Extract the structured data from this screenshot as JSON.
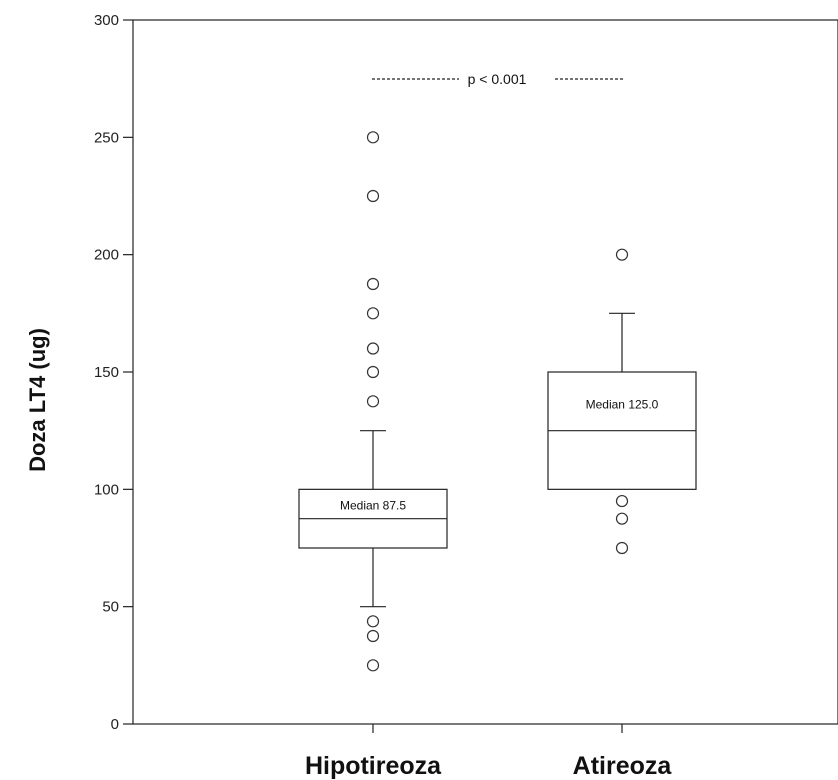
{
  "chart_data": {
    "type": "box",
    "ylabel": "Doza LT4 (ug)",
    "xlabel": "",
    "ylim": [
      0,
      300
    ],
    "yticks": [
      0,
      50,
      100,
      150,
      200,
      250,
      300
    ],
    "categories": [
      "Hipotireoza",
      "Atireoza"
    ],
    "boxes": [
      {
        "category": "Hipotireoza",
        "whisker_low": 50,
        "q1": 75,
        "median": 87.5,
        "q3": 100,
        "whisker_high": 125,
        "median_label": "Median 87.5",
        "outliers": [
          250,
          225,
          187.5,
          175,
          160,
          150,
          137.5,
          43.75,
          37.5,
          25
        ]
      },
      {
        "category": "Atireoza",
        "whisker_low": 100,
        "q1": 100,
        "median": 125,
        "q3": 150,
        "whisker_high": 175,
        "median_label": "Median 125.0",
        "outliers": [
          200,
          95,
          87.5,
          75
        ]
      }
    ],
    "annotation": "p < 0.001",
    "grid": false,
    "colors": {
      "line": "#222222",
      "marker_edge": "#333333",
      "background": "#ffffff"
    }
  }
}
